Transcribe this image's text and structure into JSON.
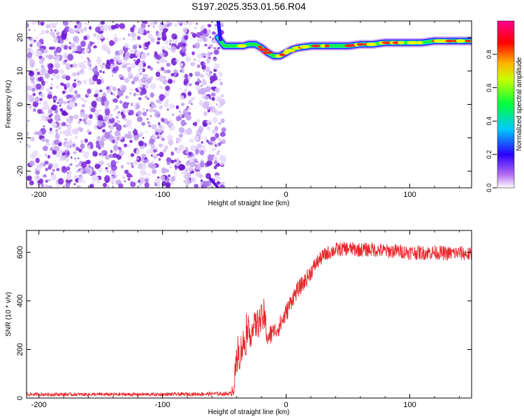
{
  "figure_title": "S197.2025.353.01.56.R04",
  "chart_data": [
    {
      "type": "heatmap",
      "name": "spectrogram",
      "title": "",
      "xlabel": "Height of straight line (km)",
      "ylabel": "Frequency (Hz)",
      "xlim": [
        -210,
        150
      ],
      "ylim": [
        -25,
        25
      ],
      "xticks": [
        -200,
        -100,
        0,
        100
      ],
      "yticks": [
        20,
        10,
        0,
        -10,
        -20
      ],
      "noise_region_x": [
        -210,
        -53
      ],
      "signal_trace": {
        "x": [
          -55,
          -50,
          -45,
          -40,
          -35,
          -30,
          -25,
          -20,
          -15,
          -10,
          -5,
          0,
          5,
          10,
          20,
          30,
          40,
          50,
          60,
          70,
          80,
          90,
          100,
          110,
          120,
          130,
          140,
          150
        ],
        "freq": [
          20,
          17.5,
          17.5,
          17.5,
          17.5,
          18,
          18,
          17,
          15.5,
          14.5,
          14.5,
          15.5,
          16.5,
          17,
          17.5,
          17.5,
          17.5,
          17.5,
          18,
          18,
          18.5,
          18.5,
          18.5,
          18.5,
          19,
          19,
          19,
          19
        ]
      },
      "colorbar": {
        "label": "Normalized spectral amplitude",
        "range": [
          0,
          1
        ],
        "ticks": [
          0.0,
          0.2,
          0.4,
          0.6,
          0.8
        ],
        "colors": [
          "#ffffff",
          "#8a2be2",
          "#0000ff",
          "#00ffff",
          "#00ff00",
          "#ffff00",
          "#ff0000",
          "#ff00ff"
        ]
      }
    },
    {
      "type": "line",
      "name": "snr",
      "title": "",
      "xlabel": "Height of straight line (km)",
      "ylabel": "SNR (10 * v/v)",
      "xlim": [
        -210,
        150
      ],
      "ylim": [
        0,
        690
      ],
      "xticks": [
        -200,
        -100,
        0,
        100
      ],
      "yticks": [
        0,
        200,
        400,
        600
      ],
      "color": "#e8262b",
      "envelope": {
        "x": [
          -210,
          -100,
          -45,
          -42,
          -40,
          -35,
          -30,
          -25,
          -20,
          -18,
          -15,
          -10,
          -5,
          0,
          5,
          10,
          15,
          20,
          25,
          30,
          35,
          40,
          50,
          60,
          70,
          80,
          90,
          100,
          110,
          120,
          130,
          140,
          150
        ],
        "y": [
          15,
          15,
          18,
          60,
          150,
          220,
          260,
          300,
          320,
          340,
          250,
          270,
          300,
          350,
          410,
          450,
          480,
          520,
          560,
          585,
          600,
          610,
          615,
          610,
          612,
          605,
          605,
          600,
          598,
          600,
          595,
          598,
          590
        ],
        "noise": [
          7,
          7,
          8,
          60,
          70,
          70,
          60,
          60,
          65,
          70,
          50,
          40,
          40,
          40,
          35,
          35,
          35,
          35,
          30,
          30,
          30,
          30,
          30,
          30,
          30,
          30,
          30,
          30,
          30,
          30,
          30,
          30,
          30
        ]
      }
    }
  ]
}
